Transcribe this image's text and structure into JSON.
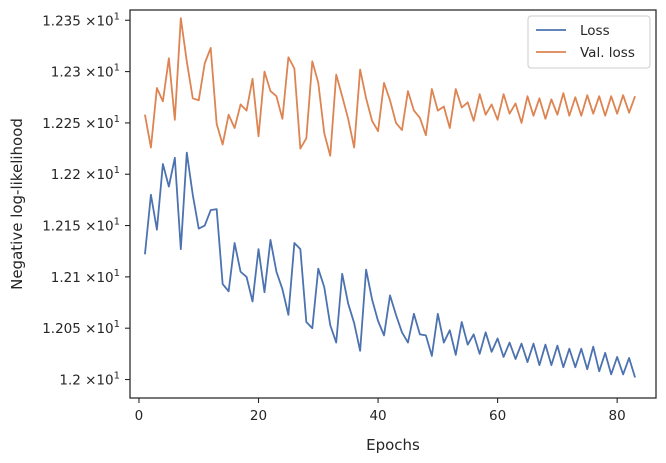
{
  "chart_data": {
    "type": "line",
    "title": "",
    "xlabel": "Epochs",
    "ylabel": "Negative log-likelihood",
    "xlim": [
      -1.5,
      86.5
    ],
    "ylim": [
      11.982,
      12.36
    ],
    "x_ticks": [
      0,
      20,
      40,
      60,
      80
    ],
    "x_tick_labels": [
      "0",
      "20",
      "40",
      "60",
      "80"
    ],
    "y_ticks": [
      12.0,
      12.05,
      12.1,
      12.15,
      12.2,
      12.25,
      12.3,
      12.35
    ],
    "y_tick_labels": [
      {
        "mantissa": "1.2",
        "exponent": "1"
      },
      {
        "mantissa": "1.205",
        "exponent": "1"
      },
      {
        "mantissa": "1.21",
        "exponent": "1"
      },
      {
        "mantissa": "1.215",
        "exponent": "1"
      },
      {
        "mantissa": "1.22",
        "exponent": "1"
      },
      {
        "mantissa": "1.225",
        "exponent": "1"
      },
      {
        "mantissa": "1.23",
        "exponent": "1"
      },
      {
        "mantissa": "1.235",
        "exponent": "1"
      }
    ],
    "y_tick_multiplier": "×10",
    "grid": false,
    "legend_position": "top-right",
    "x": [
      1,
      2,
      3,
      4,
      5,
      6,
      7,
      8,
      9,
      10,
      11,
      12,
      13,
      14,
      15,
      16,
      17,
      18,
      19,
      20,
      21,
      22,
      23,
      24,
      25,
      26,
      27,
      28,
      29,
      30,
      31,
      32,
      33,
      34,
      35,
      36,
      37,
      38,
      39,
      40,
      41,
      42,
      43,
      44,
      45,
      46,
      47,
      48,
      49,
      50,
      51,
      52,
      53,
      54,
      55,
      56,
      57,
      58,
      59,
      60,
      61,
      62,
      63,
      64,
      65,
      66,
      67,
      68,
      69,
      70,
      71,
      72,
      73,
      74,
      75,
      76,
      77,
      78,
      79,
      80,
      81,
      82,
      83
    ],
    "series": [
      {
        "name": "Loss",
        "color": "#4c72b0",
        "values": [
          12.122,
          12.18,
          12.146,
          12.21,
          12.188,
          12.216,
          12.127,
          12.221,
          12.18,
          12.147,
          12.15,
          12.165,
          12.166,
          12.093,
          12.086,
          12.133,
          12.105,
          12.1,
          12.076,
          12.127,
          12.085,
          12.136,
          12.105,
          12.088,
          12.063,
          12.133,
          12.127,
          12.056,
          12.05,
          12.108,
          12.09,
          12.053,
          12.036,
          12.103,
          12.074,
          12.055,
          12.028,
          12.107,
          12.078,
          12.057,
          12.043,
          12.082,
          12.063,
          12.046,
          12.036,
          12.064,
          12.044,
          12.043,
          12.023,
          12.064,
          12.036,
          12.048,
          12.024,
          12.056,
          12.034,
          12.044,
          12.025,
          12.046,
          12.027,
          12.04,
          12.022,
          12.036,
          12.02,
          12.035,
          12.017,
          12.035,
          12.014,
          12.034,
          12.014,
          12.033,
          12.012,
          12.03,
          12.012,
          12.03,
          12.01,
          12.032,
          12.008,
          12.026,
          12.005,
          12.022,
          12.005,
          12.021,
          12.002
        ]
      },
      {
        "name": "Val. loss",
        "color": "#dd8452",
        "values": [
          12.258,
          12.226,
          12.284,
          12.271,
          12.313,
          12.253,
          12.352,
          12.31,
          12.274,
          12.272,
          12.308,
          12.323,
          12.249,
          12.229,
          12.258,
          12.245,
          12.268,
          12.262,
          12.293,
          12.237,
          12.3,
          12.281,
          12.276,
          12.254,
          12.314,
          12.303,
          12.225,
          12.235,
          12.31,
          12.289,
          12.24,
          12.218,
          12.297,
          12.276,
          12.254,
          12.226,
          12.302,
          12.274,
          12.252,
          12.242,
          12.289,
          12.272,
          12.25,
          12.243,
          12.281,
          12.262,
          12.255,
          12.238,
          12.283,
          12.262,
          12.266,
          12.245,
          12.283,
          12.265,
          12.27,
          12.252,
          12.278,
          12.258,
          12.268,
          12.253,
          12.278,
          12.259,
          12.269,
          12.25,
          12.276,
          12.257,
          12.274,
          12.254,
          12.273,
          12.258,
          12.279,
          12.257,
          12.275,
          12.257,
          12.277,
          12.259,
          12.276,
          12.257,
          12.276,
          12.259,
          12.277,
          12.26,
          12.276
        ]
      }
    ]
  }
}
